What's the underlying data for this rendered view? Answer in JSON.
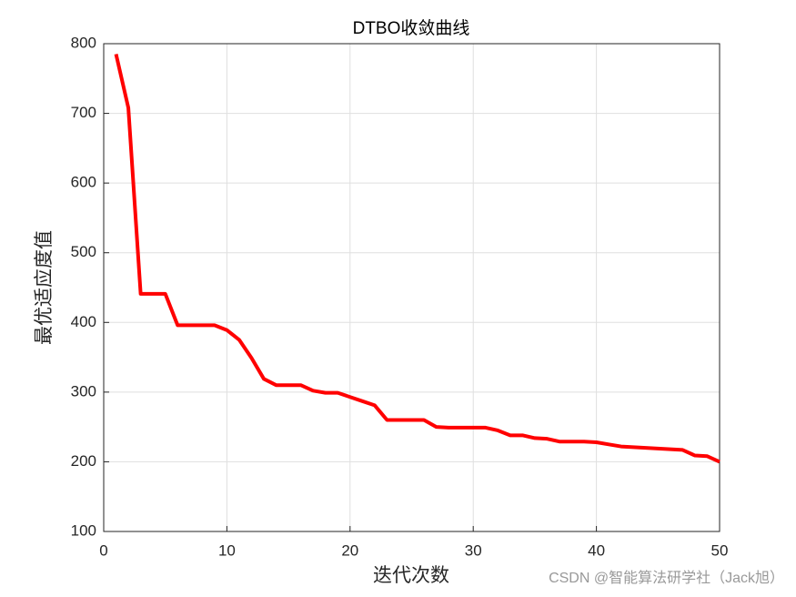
{
  "chart_data": {
    "type": "line",
    "title": "DTBO收敛曲线",
    "x_label": "迭代次数",
    "y_label": "最优适应度值",
    "x": [
      1,
      2,
      3,
      4,
      5,
      6,
      7,
      8,
      9,
      10,
      11,
      12,
      13,
      14,
      15,
      16,
      17,
      18,
      19,
      20,
      21,
      22,
      23,
      24,
      25,
      26,
      27,
      28,
      29,
      30,
      31,
      32,
      33,
      34,
      35,
      36,
      37,
      38,
      39,
      40,
      41,
      42,
      43,
      44,
      45,
      46,
      47,
      48,
      49,
      50
    ],
    "series": [
      {
        "name": "DTBO",
        "color": "#ff0000",
        "values": [
          785,
          708,
          441,
          441,
          441,
          396,
          396,
          396,
          396,
          389,
          375,
          349,
          319,
          310,
          310,
          310,
          302,
          299,
          299,
          293,
          287,
          281,
          260,
          260,
          260,
          260,
          250,
          249,
          249,
          249,
          249,
          245,
          238,
          238,
          234,
          233,
          229,
          229,
          229,
          228,
          225,
          222,
          221,
          220,
          219,
          218,
          217,
          209,
          208,
          200
        ]
      }
    ],
    "xlim": [
      0,
      50
    ],
    "ylim": [
      100,
      800
    ],
    "xticks": [
      0,
      10,
      20,
      30,
      40,
      50
    ],
    "yticks": [
      100,
      200,
      300,
      400,
      500,
      600,
      700,
      800
    ],
    "grid": true
  },
  "watermark": "CSDN @智能算法研学社（Jack旭）"
}
